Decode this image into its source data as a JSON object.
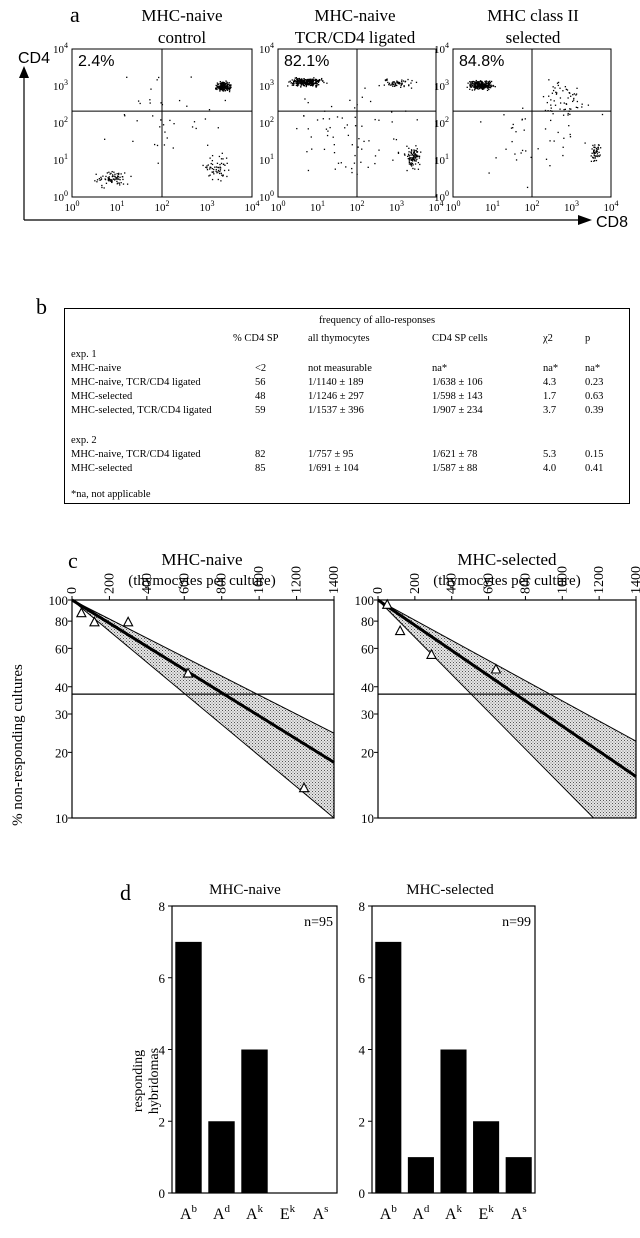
{
  "panel_a": {
    "letter": "a",
    "plots": [
      {
        "title_line1": "MHC-naive",
        "title_line2": "control",
        "percent": "2.4%"
      },
      {
        "title_line1": "MHC-naive",
        "title_line2": "TCR/CD4  ligated",
        "percent": "82.1%"
      },
      {
        "title_line1": "MHC class II",
        "title_line2": "selected",
        "percent": "84.8%"
      }
    ],
    "y_axis_label": "CD4",
    "x_axis_label": "CD8",
    "tick_mantissa": "10",
    "tick_exponents": [
      "0",
      "1",
      "2",
      "3",
      "4"
    ]
  },
  "panel_b": {
    "letter": "b",
    "header_group": "frequency of allo-responses",
    "columns": [
      "% CD4 SP",
      "all thymocytes",
      "CD4 SP cells",
      "χ2",
      "p"
    ],
    "experiments": [
      {
        "label": "exp. 1",
        "rows": [
          {
            "name": "MHC-naive",
            "cd4sp": "<2",
            "all": "not  measurable",
            "cd4cells": "na*",
            "chi2": "na*",
            "p": "na*"
          },
          {
            "name": "MHC-naive,  TCR/CD4  ligated",
            "cd4sp": "56",
            "all": "1/1140 ± 189",
            "cd4cells": "1/638 ± 106",
            "chi2": "4.3",
            "p": "0.23"
          },
          {
            "name": "MHC-selected",
            "cd4sp": "48",
            "all": "1/1246 ± 297",
            "cd4cells": "1/598 ± 143",
            "chi2": "1.7",
            "p": "0.63"
          },
          {
            "name": "MHC-selected,  TCR/CD4  ligated",
            "cd4sp": "59",
            "all": "1/1537 ± 396",
            "cd4cells": "1/907 ± 234",
            "chi2": "3.7",
            "p": "0.39"
          }
        ]
      },
      {
        "label": "exp. 2",
        "rows": [
          {
            "name": "MHC-naive,  TCR/CD4  ligated",
            "cd4sp": "82",
            "all": "1/757 ±  95",
            "cd4cells": "1/621 ± 78",
            "chi2": "5.3",
            "p": "0.15"
          },
          {
            "name": "MHC-selected",
            "cd4sp": "85",
            "all": "1/691 ± 104",
            "cd4cells": "1/587 ± 88",
            "chi2": "4.0",
            "p": "0.41"
          }
        ]
      }
    ],
    "footnote": "*na,  not  applicable"
  },
  "chart_data": [
    {
      "type": "line",
      "panel": "c",
      "title": "MHC-naive",
      "xlabel": "(thymocytes   per   culture)",
      "ylabel": "%   non-responding   cultures",
      "x_ticks": [
        0,
        200,
        400,
        600,
        800,
        1000,
        1200,
        1400
      ],
      "y_ticks": [
        10,
        20,
        30,
        40,
        60,
        80,
        100
      ],
      "y_scale": "log",
      "xlim": [
        0,
        1400
      ],
      "ylim": [
        10,
        100
      ],
      "reference_y": 37,
      "points": [
        {
          "x": 50,
          "y": 87
        },
        {
          "x": 120,
          "y": 79
        },
        {
          "x": 300,
          "y": 79
        },
        {
          "x": 620,
          "y": 46
        },
        {
          "x": 1240,
          "y": 13.7
        }
      ],
      "fit": {
        "x1": 0,
        "y1": 100,
        "x2": 1400,
        "y2": 18
      },
      "band_upper": {
        "x1": 0,
        "y1": 100,
        "x2": 1400,
        "y2": 24.5
      },
      "band_lower": {
        "x1": 0,
        "y1": 100,
        "x2": 1400,
        "y2": 10
      }
    },
    {
      "type": "line",
      "panel": "c",
      "title": "MHC-selected",
      "xlabel": "(thymocytes   per   culture)",
      "x_ticks": [
        0,
        200,
        400,
        600,
        800,
        1000,
        1200,
        1400
      ],
      "y_ticks": [
        10,
        20,
        30,
        40,
        60,
        80,
        100
      ],
      "y_scale": "log",
      "xlim": [
        0,
        1400
      ],
      "ylim": [
        10,
        100
      ],
      "reference_y": 37,
      "points": [
        {
          "x": 50,
          "y": 95
        },
        {
          "x": 120,
          "y": 72
        },
        {
          "x": 290,
          "y": 56
        },
        {
          "x": 640,
          "y": 48
        }
      ],
      "fit": {
        "x1": 0,
        "y1": 100,
        "x2": 1400,
        "y2": 15.5
      },
      "band_upper": {
        "x1": 0,
        "y1": 100,
        "x2": 1400,
        "y2": 22.5
      },
      "band_lower": {
        "x1": 0,
        "y1": 100,
        "x2": 1170,
        "y2": 10
      }
    },
    {
      "type": "bar",
      "panel": "d",
      "title": "MHC-naive",
      "ylabel": "responding hybridomas",
      "annotation": "n=95",
      "categories": [
        {
          "base": "A",
          "sup": "b"
        },
        {
          "base": "A",
          "sup": "d"
        },
        {
          "base": "A",
          "sup": "k"
        },
        {
          "base": "E",
          "sup": "k"
        },
        {
          "base": "A",
          "sup": "s"
        }
      ],
      "values": [
        7,
        2,
        4,
        0,
        0
      ],
      "ylim": [
        0,
        8
      ],
      "y_ticks": [
        0,
        2,
        4,
        6,
        8
      ]
    },
    {
      "type": "bar",
      "panel": "d",
      "title": "MHC-selected",
      "annotation": "n=99",
      "categories": [
        {
          "base": "A",
          "sup": "b"
        },
        {
          "base": "A",
          "sup": "d"
        },
        {
          "base": "A",
          "sup": "k"
        },
        {
          "base": "E",
          "sup": "k"
        },
        {
          "base": "A",
          "sup": "s"
        }
      ],
      "values": [
        7,
        1,
        4,
        2,
        1
      ],
      "ylim": [
        0,
        8
      ],
      "y_ticks": [
        0,
        2,
        4,
        6,
        8
      ]
    }
  ],
  "panel_c_letter": "c",
  "panel_d_letter": "d"
}
